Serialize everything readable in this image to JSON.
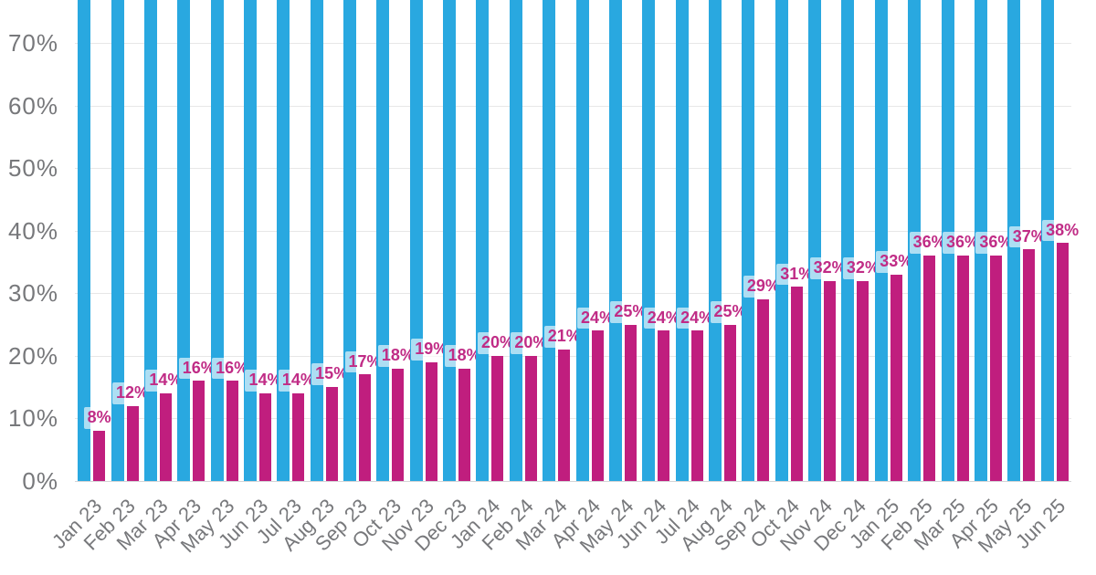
{
  "chart_data": {
    "type": "bar",
    "title": "",
    "xlabel": "",
    "ylabel": "",
    "categories": [
      "Jan 23",
      "Feb 23",
      "Mar 23",
      "Apr 23",
      "May 23",
      "Jun 23",
      "Jul 23",
      "Aug 23",
      "Sep 23",
      "Oct 23",
      "Nov 23",
      "Dec 23",
      "Jan 24",
      "Feb 24",
      "Mar 24",
      "Apr 24",
      "May 24",
      "Jun 24",
      "Jul 24",
      "Aug 24",
      "Sep 24",
      "Oct 24",
      "Nov 24",
      "Dec 24",
      "Jan 25",
      "Feb 25",
      "Mar 25",
      "Apr 25",
      "May 25",
      "Jun 25"
    ],
    "series": [
      {
        "name": "blue-total-bars",
        "top_clipped_by_image_crop": true,
        "values": null
      },
      {
        "name": "pink-value-bars",
        "values": [
          8,
          12,
          14,
          16,
          16,
          14,
          14,
          15,
          17,
          18,
          19,
          18,
          20,
          20,
          21,
          24,
          25,
          24,
          24,
          25,
          29,
          31,
          32,
          32,
          33,
          36,
          36,
          36,
          37,
          38
        ],
        "value_labels": [
          "8%",
          "12%",
          "14%",
          "16%",
          "16%",
          "14%",
          "14%",
          "15%",
          "17%",
          "18%",
          "19%",
          "18%",
          "20%",
          "20%",
          "21%",
          "24%",
          "25%",
          "24%",
          "24%",
          "25%",
          "29%",
          "31%",
          "32%",
          "32%",
          "33%",
          "36%",
          "36%",
          "36%",
          "37%",
          "38%"
        ]
      }
    ],
    "y_axis": {
      "tick_labels": [
        "0%",
        "10%",
        "20%",
        "30%",
        "40%",
        "50%",
        "60%",
        "70%"
      ],
      "tick_values": [
        0,
        10,
        20,
        30,
        40,
        50,
        60,
        70
      ],
      "visible_range": [
        0,
        76.5
      ]
    },
    "grid": true,
    "legend": "none",
    "x_tick_rotation_deg": -45
  },
  "colors": {
    "blue_bar": "#29a8e0",
    "pink_bar": "#c01e7e",
    "value_label_text": "#c02c86",
    "value_label_bg": "rgba(255,255,255,0.62)",
    "axis_text": "#77787b",
    "gridline": "#e7e7e7",
    "baseline": "#d4d4d6"
  }
}
